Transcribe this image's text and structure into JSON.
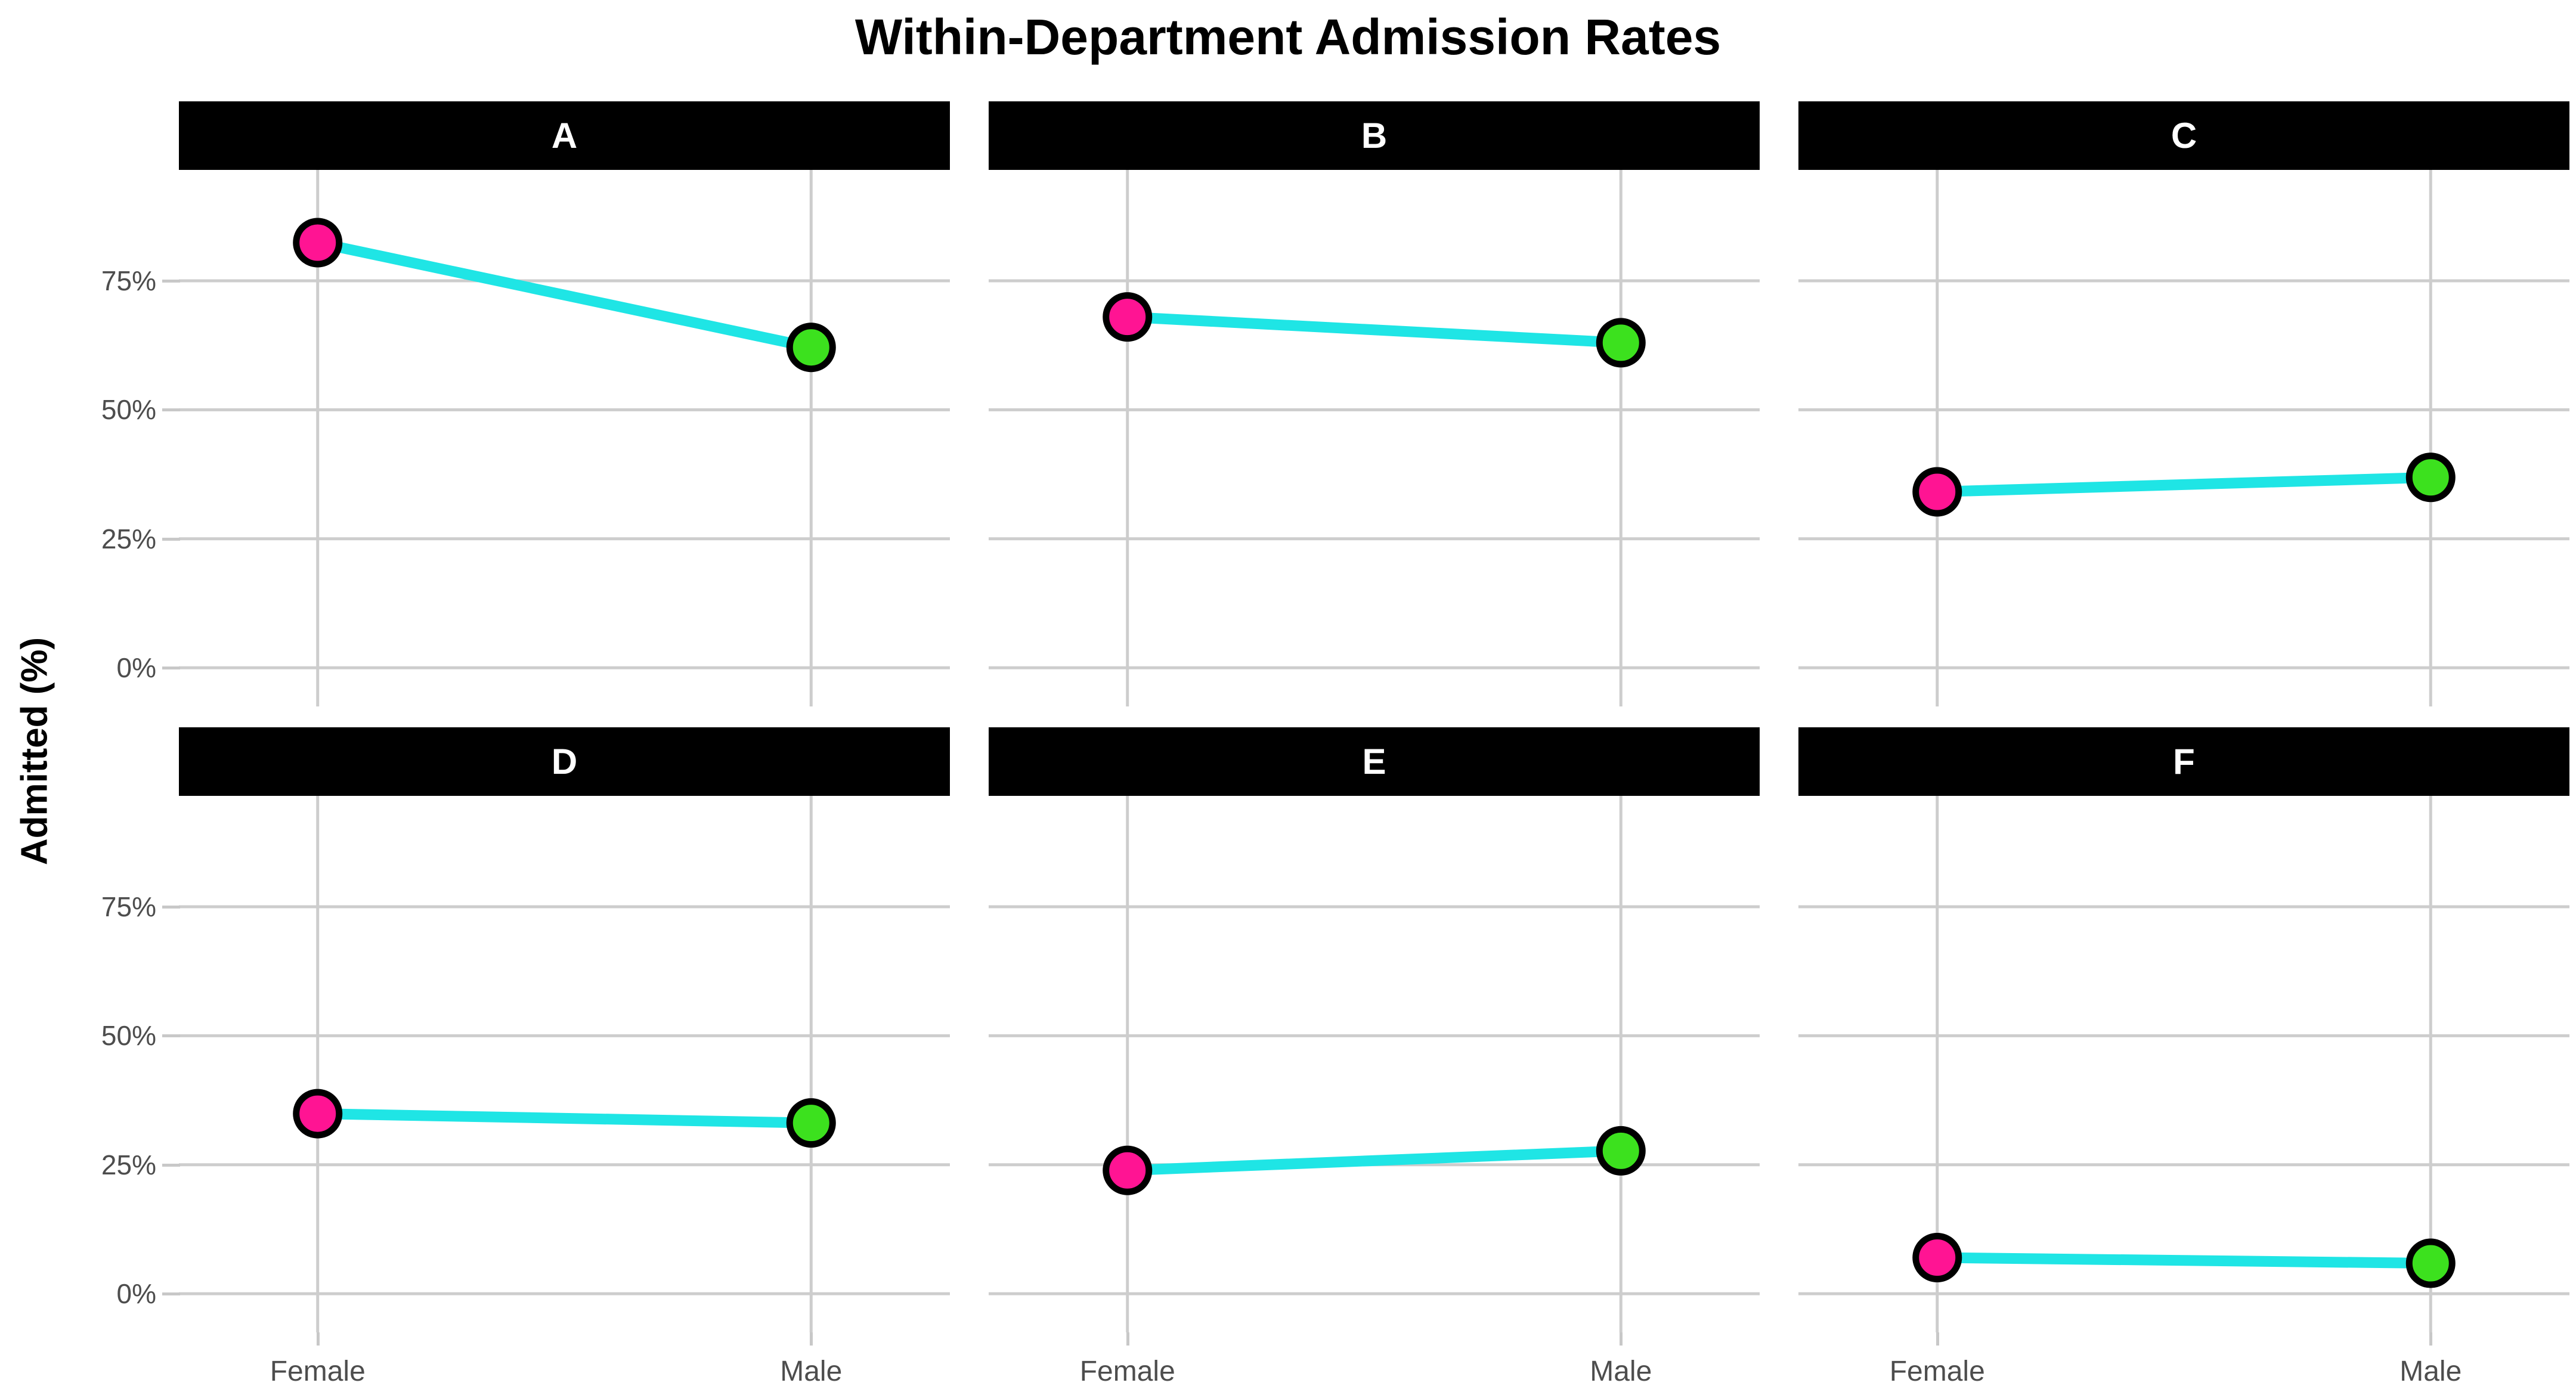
{
  "chart_data": {
    "type": "line",
    "title": "Within-Department Admission Rates",
    "ylabel": "Admitted (%)",
    "xlabel": "",
    "categories": [
      "Female",
      "Male"
    ],
    "y_tick_labels": [
      "75%",
      "50%",
      "25%",
      "0%"
    ],
    "y_tick_values": [
      75,
      50,
      25,
      0
    ],
    "ylim": [
      -7.5,
      96.5
    ],
    "grid": "on",
    "legend": "none",
    "facet_layout": {
      "rows": 2,
      "cols": 3
    },
    "facets": [
      {
        "label": "A",
        "values": {
          "Female": 82.4,
          "Male": 62.1
        }
      },
      {
        "label": "B",
        "values": {
          "Female": 68.0,
          "Male": 63.0
        }
      },
      {
        "label": "C",
        "values": {
          "Female": 34.1,
          "Male": 36.9
        }
      },
      {
        "label": "D",
        "values": {
          "Female": 34.9,
          "Male": 33.1
        }
      },
      {
        "label": "E",
        "values": {
          "Female": 23.9,
          "Male": 27.7
        }
      },
      {
        "label": "F",
        "values": {
          "Female": 7.0,
          "Male": 5.9
        }
      }
    ]
  },
  "colors": {
    "female_point": "#FF1493",
    "male_point": "#3CE11E",
    "point_outline": "#000000",
    "trend_line": "#1FE5E5",
    "gridline": "#CDCDCD",
    "tick_mark": "#C8C8C8",
    "axis_text": "#4D4D4D",
    "strip_background": "#000000",
    "strip_text": "#FFFFFF",
    "title_text": "#000000",
    "panel_background": "#FFFFFF"
  }
}
